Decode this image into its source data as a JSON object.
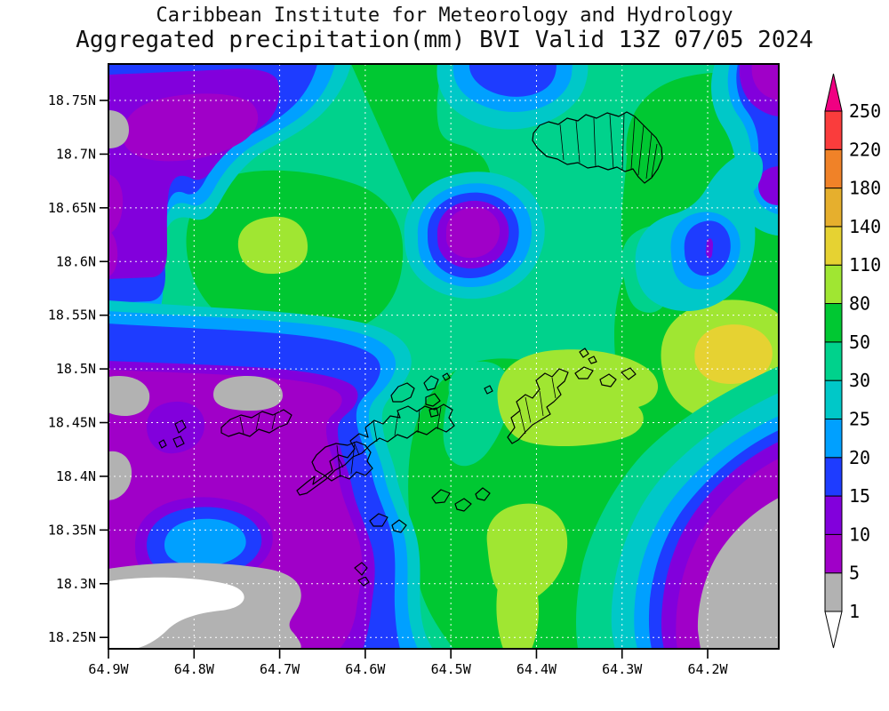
{
  "title": {
    "line1": "Caribbean Institute for Meteorology and Hydrology",
    "line2": "Aggregated precipitation(mm) BVI Valid 13Z 07/05 2024"
  },
  "axes": {
    "lat_ticks": [
      "18.75N",
      "18.7N",
      "18.65N",
      "18.6N",
      "18.55N",
      "18.5N",
      "18.45N",
      "18.4N",
      "18.35N",
      "18.3N",
      "18.25N"
    ],
    "lon_ticks": [
      "64.9W",
      "64.8W",
      "64.7W",
      "64.6W",
      "64.5W",
      "64.4W",
      "64.3W",
      "64.2W"
    ]
  },
  "colorbar": {
    "levels": [
      "1",
      "5",
      "10",
      "15",
      "20",
      "25",
      "30",
      "50",
      "80",
      "110",
      "140",
      "180",
      "220",
      "250"
    ],
    "segment_colors_bottom_to_top": [
      "#b2b2b2",
      "#a000c8",
      "#8200dc",
      "#1e3cff",
      "#00a0ff",
      "#00c8c8",
      "#00d28c",
      "#00c832",
      "#a0e632",
      "#e6d232",
      "#e6af2d",
      "#f08228",
      "#fa3c3c"
    ],
    "below_min_color": "#ffffff",
    "above_max_color": "#f00082"
  },
  "chart_data": {
    "type": "heatmap",
    "title": "Aggregated precipitation (mm)",
    "region_label": "BVI",
    "valid_label": "13Z 07/05 2024",
    "units": "mm",
    "lat_tick_values": [
      18.75,
      18.7,
      18.65,
      18.6,
      18.55,
      18.5,
      18.45,
      18.4,
      18.35,
      18.3,
      18.25
    ],
    "lon_tick_values_west": [
      64.9,
      64.8,
      64.7,
      64.6,
      64.5,
      64.4,
      64.3,
      64.2
    ],
    "contour_levels_mm": [
      1,
      5,
      10,
      15,
      20,
      25,
      30,
      50,
      80,
      110,
      140,
      180,
      220,
      250
    ],
    "palette_low_to_high": [
      "#ffffff",
      "#b2b2b2",
      "#a000c8",
      "#8200dc",
      "#1e3cff",
      "#00a0ff",
      "#00c8c8",
      "#00d28c",
      "#00c832",
      "#a0e632",
      "#e6d232",
      "#e6af2d",
      "#f08228",
      "#fa3c3c",
      "#f00082"
    ],
    "legend_position": "right",
    "grid": "white dashed lat/lon grid",
    "observed_regions": [
      {
        "area": "southwest quadrant (west of ~64.6W, south of ~18.5N)",
        "value_mm": "1-10, with pockets <1 (white) near 18.3N 64.85W and 1-5 (gray) patches"
      },
      {
        "area": "local minimum oval near 64.8W 18.35N",
        "value_mm": "15-25"
      },
      {
        "area": "upper-left blob near 64.85W 18.7N",
        "value_mm": "5-15"
      },
      {
        "area": "central minimum near 64.5W 18.65N",
        "value_mm": "5-25 concentric rings"
      },
      {
        "area": "most of central and northeast domain",
        "value_mm": "30-80"
      },
      {
        "area": "local maximum near 64.7W 18.6N",
        "value_mm": "80-110"
      },
      {
        "area": "local maximum near 64.25W 18.5N",
        "value_mm": "110-140 core"
      },
      {
        "area": "around Virgin Gorda and south-central area",
        "value_mm": "80-110"
      },
      {
        "area": "blue minimum near 64.35W 18.6N",
        "value_mm": "10-25"
      },
      {
        "area": "southeast corner",
        "value_mm": "<1-10 (gray core with purple ring)"
      }
    ]
  }
}
